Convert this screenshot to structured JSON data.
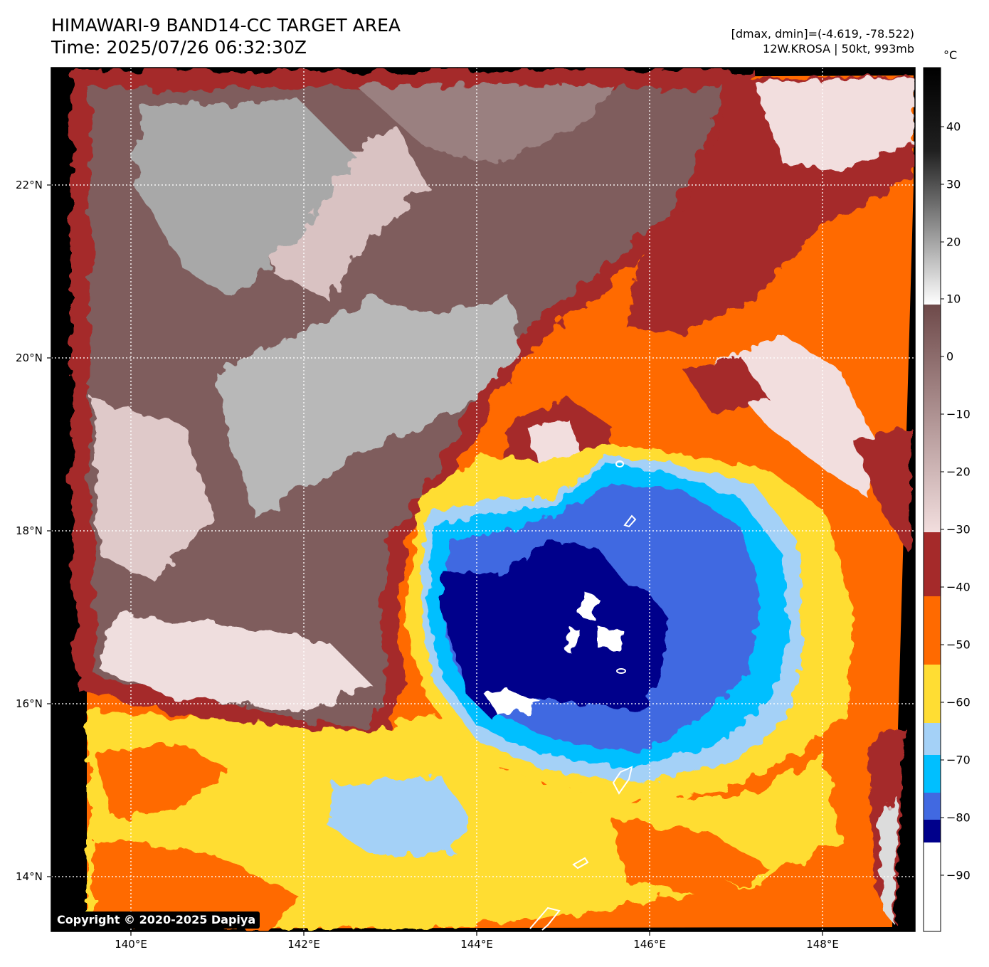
{
  "header": {
    "title": "HIMAWARI-9 BAND14-CC TARGET AREA",
    "time": "Time: 2025/07/26 06:32:30Z",
    "dmax_dmin": "[dmax, dmin]=(-4.619, -78.522)",
    "storm": "12W.KROSA | 50kt, 993mb"
  },
  "map": {
    "lat_ticks": [
      "22°N",
      "20°N",
      "18°N",
      "16°N",
      "14°N"
    ],
    "lon_ticks": [
      "140°E",
      "142°E",
      "144°E",
      "146°E",
      "148°E"
    ],
    "lon_range": [
      139.0,
      149.0
    ],
    "lat_range": [
      13.35,
      23.35
    ]
  },
  "colorbar": {
    "unit": "°C",
    "ticks": [
      "40",
      "30",
      "20",
      "10",
      "0",
      "−10",
      "−20",
      "−30",
      "−40",
      "−50",
      "−60",
      "−70",
      "−80",
      "−90"
    ],
    "range": [
      -100,
      50
    ],
    "colors": {
      "gray_hi": "#000000",
      "gray_lo": "#ffffff",
      "warm_hi": "#6e4a4a",
      "warm_lo": "#f2dede",
      "red": "#a52a2a",
      "orange": "#ff6a00",
      "yellow": "#ffdd33",
      "lightblue": "#a4d1f7",
      "cyan": "#00bfff",
      "blue": "#4169e1",
      "navy": "#00008b",
      "white": "#ffffff"
    }
  },
  "footer": {
    "copyright": "Copyright © 2020-2025 Dapiya"
  }
}
